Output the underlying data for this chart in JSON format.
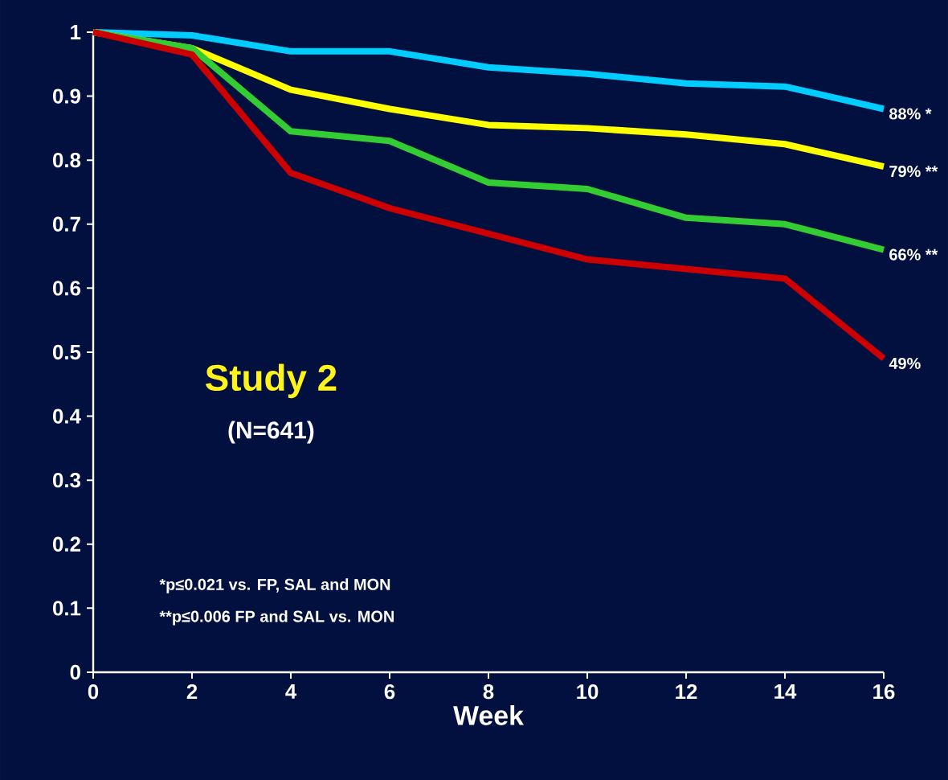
{
  "chart_data": {
    "type": "line",
    "xlabel": "Week",
    "x": [
      0,
      2,
      4,
      6,
      8,
      10,
      12,
      14,
      16
    ],
    "series": [
      {
        "color": "#00ccff",
        "values": [
          1,
          0.995,
          0.97,
          0.97,
          0.945,
          0.935,
          0.92,
          0.915,
          0.88
        ]
      },
      {
        "color": "#ffff00",
        "values": [
          1,
          0.975,
          0.91,
          0.88,
          0.855,
          0.85,
          0.84,
          0.825,
          0.79
        ]
      },
      {
        "color": "#33cc33",
        "values": [
          1,
          0.975,
          0.845,
          0.83,
          0.765,
          0.755,
          0.71,
          0.7,
          0.66
        ]
      },
      {
        "color": "#cc0000",
        "values": [
          1,
          0.965,
          0.78,
          0.725,
          0.685,
          0.645,
          0.63,
          0.615,
          0.49
        ]
      }
    ],
    "xlim": [
      0,
      16
    ],
    "ylim": [
      0,
      1
    ],
    "xticks": [
      0,
      2,
      4,
      6,
      8,
      10,
      12,
      14,
      16
    ],
    "yticks": [
      0,
      0.1,
      0.2,
      0.3,
      0.4,
      0.5,
      0.6,
      0.7,
      0.8,
      0.9,
      1
    ],
    "grid": false,
    "marker": "none",
    "line_style": "solid",
    "annotations": [
      "Study 2",
      "(N=641)",
      "*p≤0.021 vs. FP, SAL and MON",
      "**p≤0.006 FP and SAL vs. MON",
      "88% *",
      "79% **",
      "66% **",
      "49%"
    ]
  }
}
